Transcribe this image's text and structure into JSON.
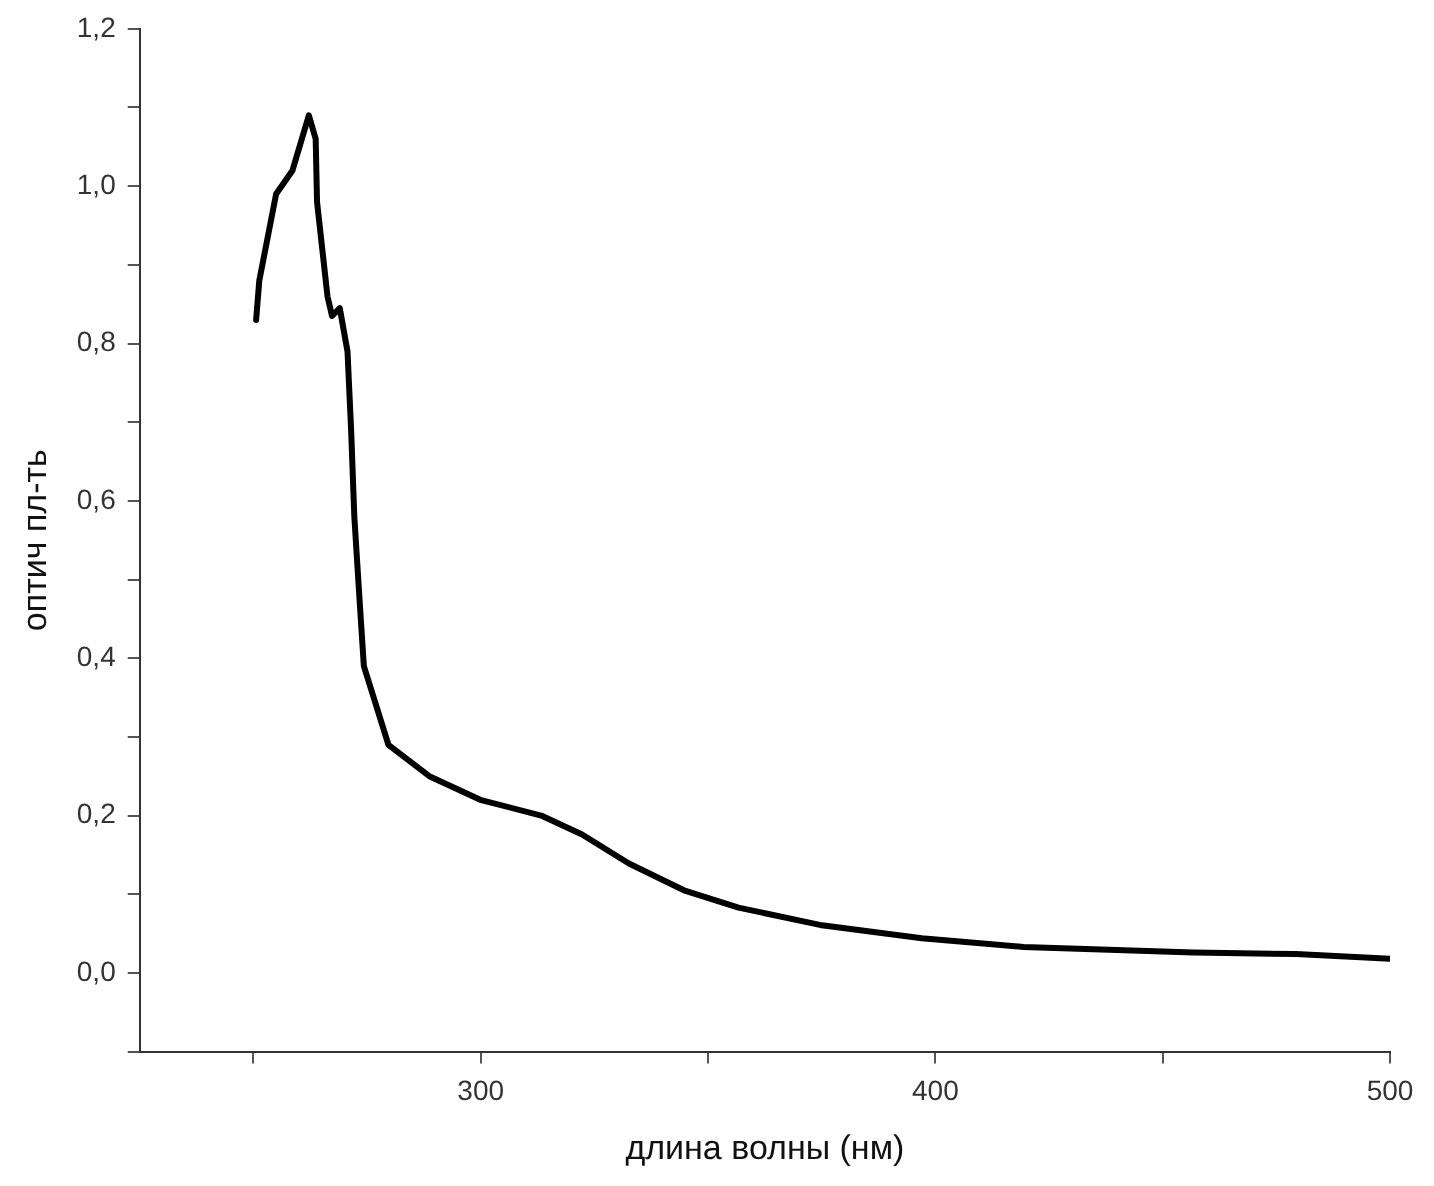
{
  "chart_data": {
    "type": "line",
    "xlabel": "длина волны (нм)",
    "ylabel": "оптич пл-ть",
    "xlim": [
      225,
      500
    ],
    "ylim": [
      -0.1,
      1.2
    ],
    "xticks": [
      {
        "value": 250,
        "label": null
      },
      300,
      {
        "value": 350,
        "label": null
      },
      400,
      {
        "value": 450,
        "label": null
      },
      500
    ],
    "yticks": [
      {
        "value": -0.1,
        "label": null
      },
      {
        "value": 0,
        "label": "0,0"
      },
      {
        "value": 0.1,
        "label": null
      },
      {
        "value": 0.2,
        "label": "0,2"
      },
      {
        "value": 0.3,
        "label": null
      },
      {
        "value": 0.4,
        "label": "0,4"
      },
      {
        "value": 0.5,
        "label": null
      },
      {
        "value": 0.6,
        "label": "0,6"
      },
      {
        "value": 0.7,
        "label": null
      },
      {
        "value": 0.8,
        "label": "0,8"
      },
      {
        "value": 0.9,
        "label": null
      },
      {
        "value": 1.0,
        "label": "1,0"
      },
      {
        "value": 1.1,
        "label": null
      },
      {
        "value": 1.2,
        "label": "1,2"
      }
    ],
    "grid": false,
    "legend": false,
    "marker": "none",
    "line_style": "solid",
    "series": [
      {
        "color": "#000000",
        "x": [
          250.6,
          251.3,
          255,
          258.6,
          262.2,
          263.7,
          264,
          266.3,
          267.3,
          269,
          270.7,
          271.5,
          272.2,
          273.4,
          274.3,
          279.7,
          288.7,
          299.9,
          313.3,
          322.3,
          332.6,
          344.7,
          356.7,
          374.6,
          397,
          419.4,
          456.8,
          479.3,
          500
        ],
        "values": [
          0.83,
          0.88,
          0.99,
          1.02,
          1.09,
          1.06,
          0.98,
          0.86,
          0.835,
          0.845,
          0.79,
          0.69,
          0.58,
          0.47,
          0.39,
          0.29,
          0.25,
          0.22,
          0.2,
          0.176,
          0.139,
          0.105,
          0.083,
          0.061,
          0.044,
          0.033,
          0.026,
          0.024,
          0.018
        ]
      }
    ]
  }
}
